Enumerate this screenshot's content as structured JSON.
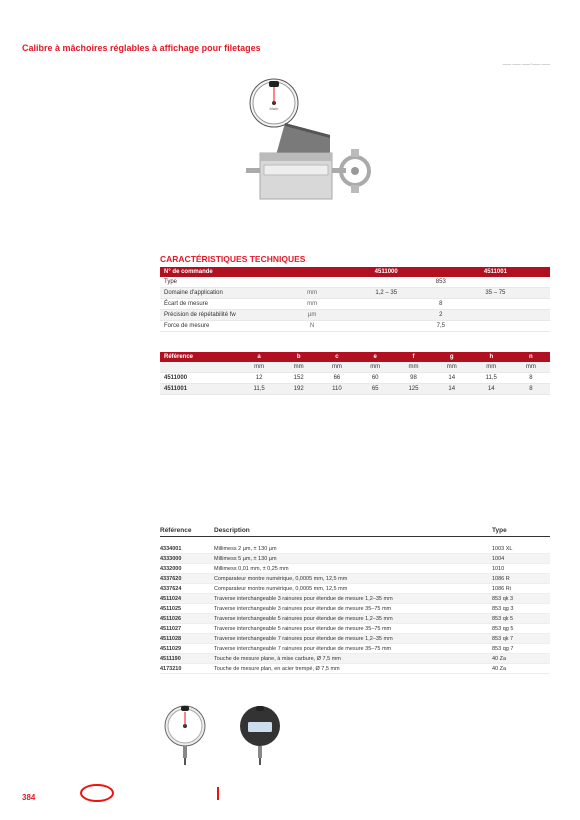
{
  "colors": {
    "brand": "#e11928",
    "header_bg": "#b01020",
    "row_alt": "#f2f2f2",
    "text": "#333333",
    "muted": "#888888"
  },
  "title": "Calibre à mâchoires réglables à affichage pour filetages",
  "breadcrumb": "___    ___    ___.___ ___",
  "section_header": "CARACTÉRISTIQUES TECHNIQUES",
  "tech": {
    "headers": [
      "N° de commande",
      "",
      "4511000",
      "4511001"
    ],
    "rows": [
      {
        "label": "Type",
        "unit": "",
        "v1": "853",
        "v2": "",
        "alt": false,
        "span": true
      },
      {
        "label": "Domaine d'application",
        "unit": "mm",
        "v1": "1,2 – 35",
        "v2": "35 – 75",
        "alt": true
      },
      {
        "label": "Écart de mesure",
        "unit": "mm",
        "v1": "8",
        "v2": "",
        "alt": false,
        "span": true
      },
      {
        "label": "Précision de répétabilité fw",
        "unit": "µm",
        "v1": "2",
        "v2": "",
        "alt": true,
        "span": true
      },
      {
        "label": "Force de mesure",
        "unit": "N",
        "v1": "7,5",
        "v2": "",
        "alt": false,
        "span": true
      }
    ]
  },
  "dim": {
    "headers": [
      "Référence",
      "a",
      "b",
      "c",
      "e",
      "f",
      "g",
      "h",
      "n"
    ],
    "unit_row": [
      "",
      "mm",
      "mm",
      "mm",
      "mm",
      "mm",
      "mm",
      "mm",
      "mm"
    ],
    "rows": [
      {
        "cells": [
          "4511000",
          "12",
          "152",
          "66",
          "60",
          "98",
          "14",
          "11,5",
          "8"
        ],
        "alt": false
      },
      {
        "cells": [
          "4511001",
          "11,5",
          "192",
          "110",
          "65",
          "125",
          "14",
          "14",
          "8"
        ],
        "alt": true
      }
    ]
  },
  "acc": {
    "headers": [
      "Référence",
      "Description",
      "Type"
    ],
    "rows": [
      {
        "ref": "4334001",
        "desc": "Millimess 2 µm, ± 130 µm",
        "type": "1003 XL",
        "alt": false
      },
      {
        "ref": "4333000",
        "desc": "Millimess 5 µm, ± 130 µm",
        "type": "1004",
        "alt": true
      },
      {
        "ref": "4332000",
        "desc": "Millimess 0,01 mm, ± 0,25 mm",
        "type": "1010",
        "alt": false
      },
      {
        "ref": "4337620",
        "desc": "Comparateur montre numérique, 0,0005 mm, 12,5 mm",
        "type": "1086 R",
        "alt": true
      },
      {
        "ref": "4337624",
        "desc": "Comparateur montre numérique, 0,0005 mm, 12,5 mm",
        "type": "1086 Ri",
        "alt": false
      },
      {
        "ref": "4511024",
        "desc": "Traverse interchangeable 3 rainures pour étendue de mesure 1,2–35 mm",
        "type": "853 qk 3",
        "alt": true
      },
      {
        "ref": "4511025",
        "desc": "Traverse interchangeable 3 rainures pour étendue de mesure 35–75 mm",
        "type": "853 qg 3",
        "alt": false
      },
      {
        "ref": "4511026",
        "desc": "Traverse interchangeable 5 rainures pour étendue de mesure 1,2–35 mm",
        "type": "853 qk 5",
        "alt": true
      },
      {
        "ref": "4511027",
        "desc": "Traverse interchangeable 5 rainures pour étendue de mesure 35–75 mm",
        "type": "853 qg 5",
        "alt": false
      },
      {
        "ref": "4511028",
        "desc": "Traverse interchangeable 7 rainures pour étendue de mesure 1,2–35 mm",
        "type": "853 qk 7",
        "alt": true
      },
      {
        "ref": "4511029",
        "desc": "Traverse interchangeable 7 rainures pour étendue de mesure 35–75 mm",
        "type": "853 qg 7",
        "alt": false
      },
      {
        "ref": "4511190",
        "desc": "Touche de mesure plane, à mise carbure, Ø 7,5 mm",
        "type": "40 Za",
        "alt": true
      },
      {
        "ref": "4173210",
        "desc": "Touche de mesure plan, en acier trempé, Ø 7,5 mm",
        "type": "40 Za",
        "alt": false
      }
    ]
  },
  "page_number": "384"
}
